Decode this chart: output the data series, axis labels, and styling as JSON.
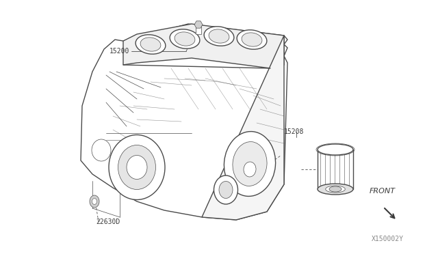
{
  "bg_color": "#ffffff",
  "diagram_id": "X150002Y",
  "lc": "#4a4a4a",
  "tc": "#3a3a3a",
  "front_label": "FRONT",
  "label_15200": "15200",
  "label_15208": "15208",
  "label_22630D": "22630D"
}
